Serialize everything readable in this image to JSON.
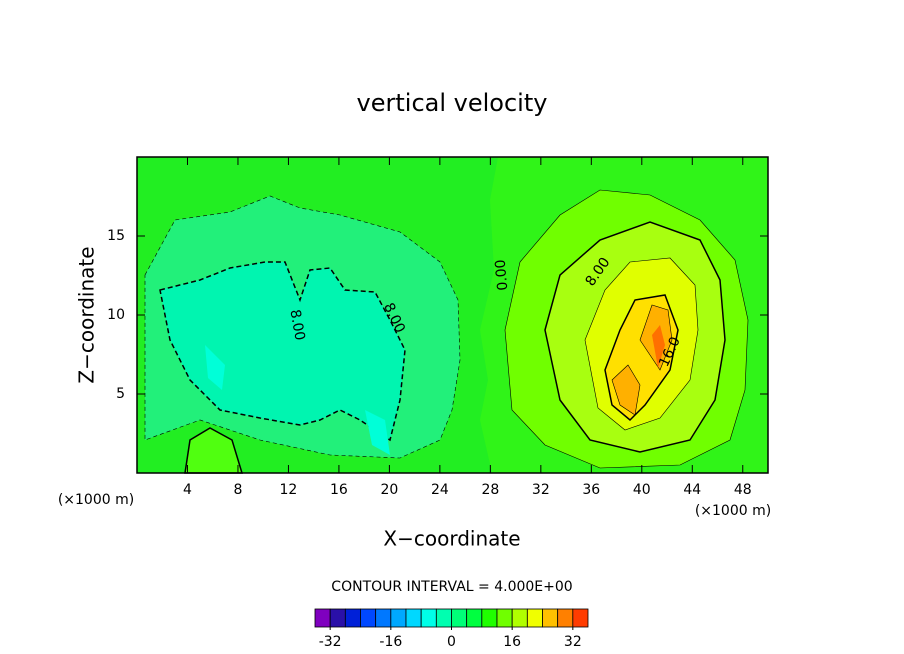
{
  "chart_data": {
    "type": "contour",
    "title": "vertical velocity",
    "x_label": "X−coordinate",
    "y_label": "Z−coordinate",
    "x_unit": "(×1000 m)",
    "x2_unit": "(×1000 m)",
    "xlim": [
      0,
      50
    ],
    "xticks": [
      4,
      8,
      12,
      16,
      20,
      24,
      28,
      32,
      36,
      40,
      44,
      48
    ],
    "ylim": [
      0,
      20
    ],
    "yticks": [
      5,
      10,
      15
    ],
    "contour_labels": [
      "8.00",
      "8.00",
      "0.00",
      "8.00",
      "16.0"
    ],
    "contour_interval": "CONTOUR INTERVAL = 4.000E+00",
    "colorbar": {
      "lim": [
        -36,
        36
      ],
      "colors": [
        "#7f00bf",
        "#2a10a8",
        "#0020d8",
        "#0048ff",
        "#0078ff",
        "#00a8ff",
        "#00d8ff",
        "#00ffe8",
        "#00ffb0",
        "#00ff78",
        "#00ff40",
        "#20ff00",
        "#70ff00",
        "#b0ff00",
        "#f0ff00",
        "#ffc000",
        "#ff8000",
        "#ff3c00"
      ],
      "ticks": [
        -32,
        -16,
        0,
        16,
        32
      ]
    }
  }
}
